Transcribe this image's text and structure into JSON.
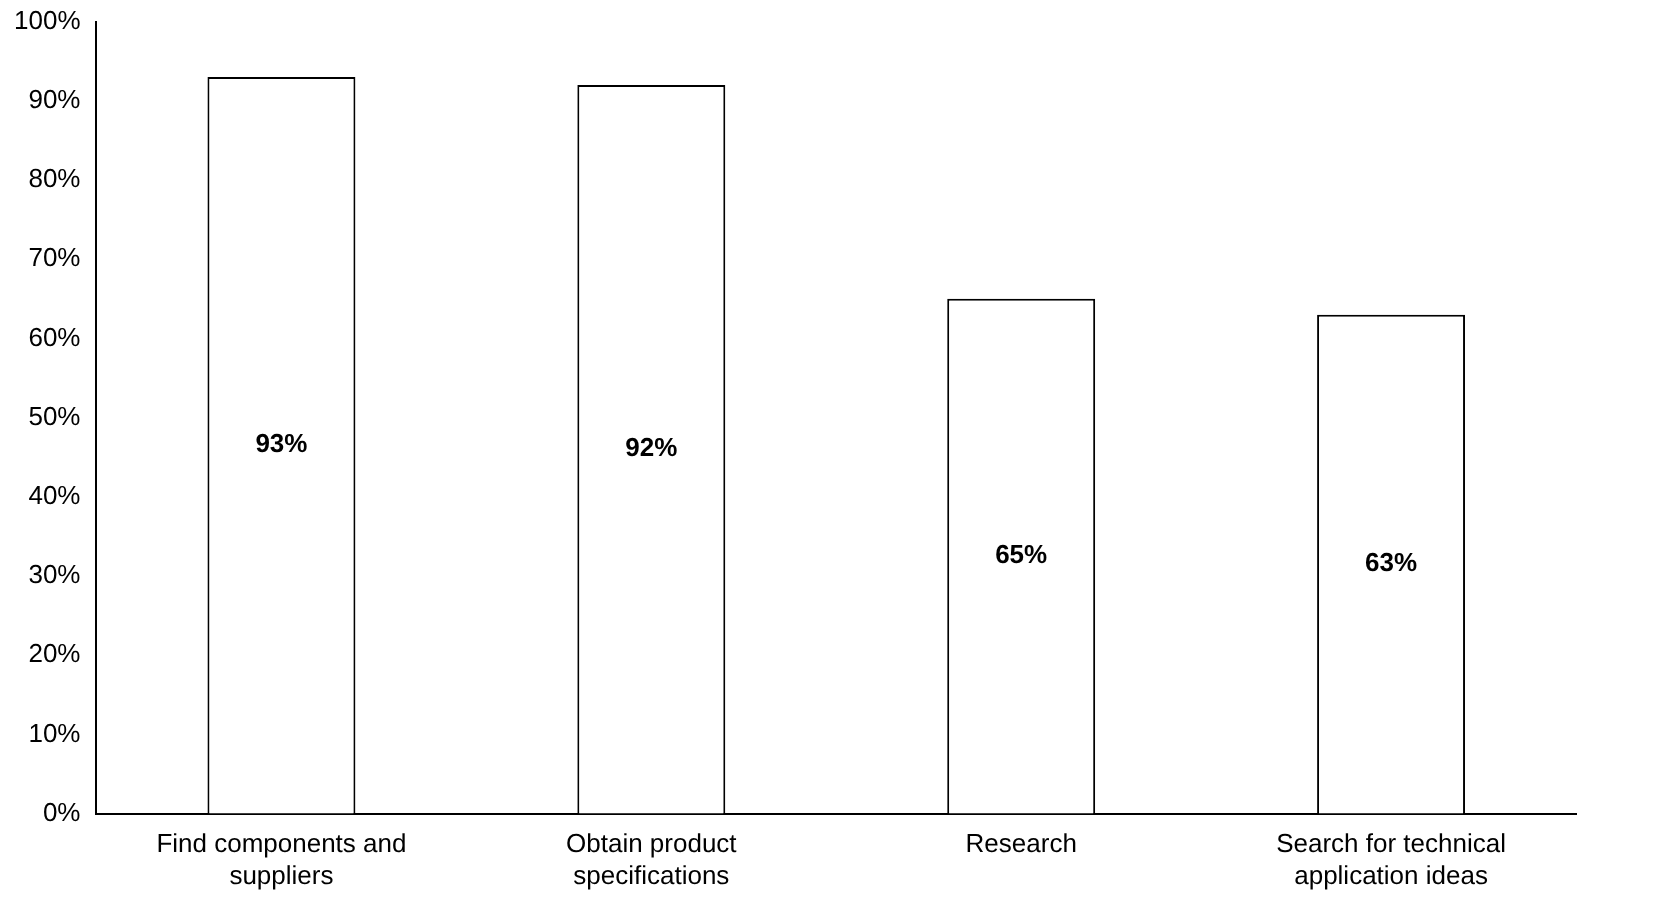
{
  "chart_data": {
    "type": "bar",
    "categories": [
      "Find components and suppliers",
      "Obtain product specifications",
      "Research",
      "Search for technical application ideas"
    ],
    "values": [
      93,
      92,
      65,
      63
    ],
    "value_labels": [
      "93%",
      "92%",
      "65%",
      "63%"
    ],
    "color": "#ffffff",
    "ylim": [
      0,
      100
    ],
    "yticks": [
      {
        "value": 0,
        "label": "0%"
      },
      {
        "value": 10,
        "label": "10%"
      },
      {
        "value": 20,
        "label": "20%"
      },
      {
        "value": 30,
        "label": "30%"
      },
      {
        "value": 40,
        "label": "40%"
      },
      {
        "value": 50,
        "label": "50%"
      },
      {
        "value": 60,
        "label": "60%"
      },
      {
        "value": 70,
        "label": "70%"
      },
      {
        "value": 80,
        "label": "80%"
      },
      {
        "value": 90,
        "label": "90%"
      },
      {
        "value": 100,
        "label": "100%"
      }
    ],
    "grid": false,
    "legend": false
  }
}
